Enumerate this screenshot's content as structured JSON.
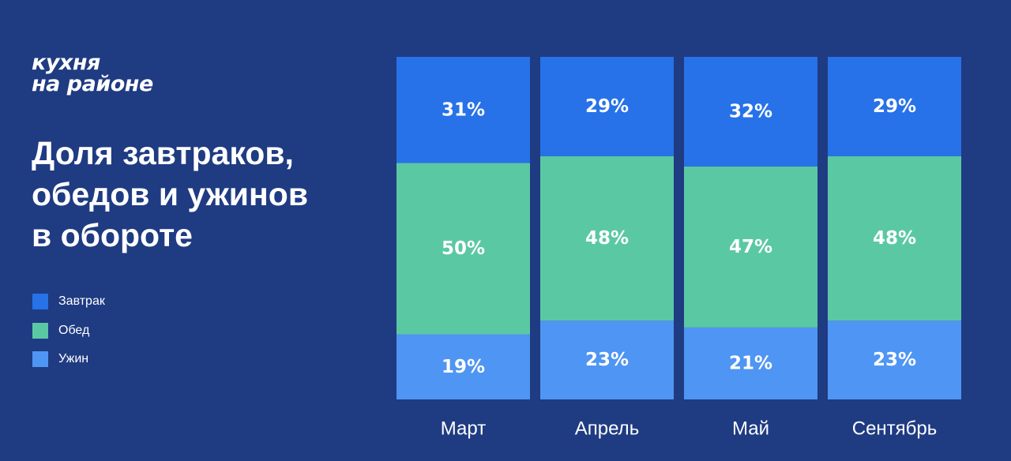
{
  "logo": {
    "line1": "кухня",
    "line2": "на районе"
  },
  "title": "Доля завтраков,\nобедов и ужинов\nв обороте",
  "legend": [
    {
      "label": "Завтрак",
      "color": "#2772e8"
    },
    {
      "label": "Обед",
      "color": "#5bc8a4"
    },
    {
      "label": "Ужин",
      "color": "#4f95f3"
    }
  ],
  "chart_data": {
    "type": "bar",
    "stacked": true,
    "normalized": true,
    "title": "Доля завтраков, обедов и ужинов в обороте",
    "categories": [
      "Март",
      "Апрель",
      "Май",
      "Сентябрь"
    ],
    "ylim": [
      0,
      100
    ],
    "unit": "%",
    "series": [
      {
        "name": "Ужин",
        "color": "#4f95f3",
        "values": [
          19,
          23,
          21,
          23
        ]
      },
      {
        "name": "Обед",
        "color": "#5bc8a4",
        "values": [
          50,
          48,
          47,
          48
        ]
      },
      {
        "name": "Завтрак",
        "color": "#2772e8",
        "values": [
          31,
          29,
          32,
          29
        ]
      }
    ],
    "data_labels": [
      [
        "19%",
        "23%",
        "21%",
        "23%"
      ],
      [
        "50%",
        "48%",
        "47%",
        "48%"
      ],
      [
        "31%",
        "29%",
        "32%",
        "29%"
      ]
    ]
  }
}
